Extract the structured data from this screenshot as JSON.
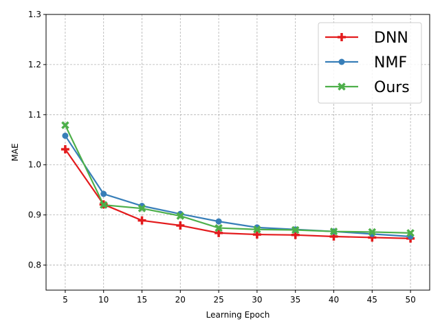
{
  "chart_data": {
    "type": "line",
    "title": "",
    "xlabel": "Learning Epoch",
    "ylabel": "MAE",
    "x": [
      5,
      10,
      15,
      20,
      25,
      30,
      35,
      40,
      45,
      50
    ],
    "xlim": [
      2.5,
      52.5
    ],
    "ylim": [
      0.75,
      1.3
    ],
    "xticks": [
      5,
      10,
      15,
      20,
      25,
      30,
      35,
      40,
      45,
      50
    ],
    "yticks": [
      0.8,
      0.9,
      1.0,
      1.1,
      1.2,
      1.3
    ],
    "ytick_labels": [
      "0.8",
      "0.9",
      "1.0",
      "1.1",
      "1.2",
      "1.3"
    ],
    "grid": true,
    "legend_position": "top-right",
    "series": [
      {
        "name": "DNN",
        "color": "#e31a1c",
        "marker": "plus",
        "values": [
          1.031,
          0.921,
          0.889,
          0.879,
          0.864,
          0.861,
          0.86,
          0.857,
          0.855,
          0.853
        ]
      },
      {
        "name": "NMF",
        "color": "#377eb8",
        "marker": "circle",
        "values": [
          1.058,
          0.942,
          0.918,
          0.902,
          0.887,
          0.875,
          0.871,
          0.867,
          0.862,
          0.857
        ]
      },
      {
        "name": "Ours",
        "color": "#4daf4a",
        "marker": "x",
        "values": [
          1.079,
          0.92,
          0.913,
          0.898,
          0.874,
          0.871,
          0.87,
          0.867,
          0.866,
          0.864
        ]
      }
    ]
  }
}
